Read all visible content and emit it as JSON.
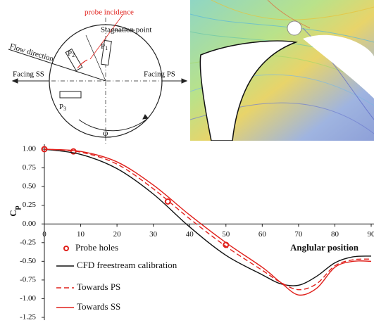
{
  "diagram": {
    "probe_incidence": "probe incidence",
    "stagnation_point": "Stagnation point",
    "flow_direction": "Flow direction",
    "facing_ss": "Facing SS",
    "facing_ps": "Facing PS",
    "p1": "P",
    "p1_sub": "1",
    "p2": "P",
    "p2_sub": "2",
    "p3": "P",
    "p3_sub": "3",
    "phi": "φ"
  },
  "chart_data": {
    "type": "line",
    "y_label": "C",
    "y_label_sub": "p",
    "x_label": "Anglular position",
    "xlim": [
      0,
      90
    ],
    "xticks": [
      0,
      10,
      20,
      30,
      40,
      50,
      60,
      70,
      80,
      90
    ],
    "ylim": [
      -1.25,
      1.0
    ],
    "yticks": [
      {
        "value": 1.0,
        "label": "1.00"
      },
      {
        "value": 0.75,
        "label": "0.75"
      },
      {
        "value": 0.5,
        "label": "0.50"
      },
      {
        "value": 0.25,
        "label": "0.25"
      },
      {
        "value": 0,
        "label": "0.00"
      },
      {
        "value": -0.25,
        "label": "-0.25"
      },
      {
        "value": -0.5,
        "label": "-0.50"
      },
      {
        "value": -0.75,
        "label": "-0.75"
      },
      {
        "value": -1.0,
        "label": "-1.00"
      },
      {
        "value": -1.25,
        "label": "-1.25"
      }
    ],
    "series": [
      {
        "name": "Probe holes",
        "color": "#e0201b",
        "style": "marker",
        "x": [
          0,
          8,
          34,
          50
        ],
        "values": [
          1.0,
          0.97,
          0.3,
          -0.28
        ]
      },
      {
        "name": "CFD freestream calibration",
        "color": "#111111",
        "style": "solid",
        "x": [
          0,
          10,
          20,
          30,
          40,
          50,
          60,
          65,
          70,
          75,
          80,
          85,
          90
        ],
        "values": [
          1.0,
          0.93,
          0.74,
          0.4,
          -0.04,
          -0.42,
          -0.68,
          -0.8,
          -0.82,
          -0.7,
          -0.52,
          -0.44,
          -0.43
        ]
      },
      {
        "name": "Towards PS",
        "color": "#e0201b",
        "style": "dashed",
        "x": [
          0,
          10,
          20,
          30,
          40,
          50,
          60,
          65,
          70,
          75,
          80,
          85,
          90
        ],
        "values": [
          1.0,
          0.96,
          0.8,
          0.47,
          0.07,
          -0.3,
          -0.62,
          -0.78,
          -0.88,
          -0.8,
          -0.56,
          -0.48,
          -0.47
        ]
      },
      {
        "name": "Towards SS",
        "color": "#e0201b",
        "style": "solid",
        "x": [
          0,
          10,
          20,
          30,
          40,
          50,
          60,
          65,
          70,
          75,
          80,
          85,
          90
        ],
        "values": [
          1.0,
          0.97,
          0.83,
          0.52,
          0.12,
          -0.25,
          -0.58,
          -0.78,
          -0.95,
          -0.86,
          -0.58,
          -0.5,
          -0.5
        ]
      }
    ]
  }
}
